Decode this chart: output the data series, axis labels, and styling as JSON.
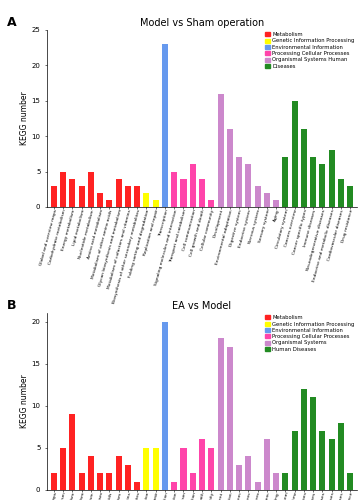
{
  "panel_A": {
    "title": "Model vs Sham operation",
    "label": "A",
    "ylabel": "KEGG number",
    "ylim": [
      0,
      25
    ],
    "yticks": [
      0,
      5,
      10,
      15,
      20,
      25
    ],
    "categories": [
      "Global and overview maps",
      "Carbohydrate metabolism",
      "Energy metabolism",
      "Lipid metabolism",
      "Nucleotide metabolism",
      "Amino acid metabolism",
      "Metabolism of other amino acids",
      "Glycan biosynthesis and metabolism",
      "Metabolism of cofactors and vitamins",
      "Biosynthesis of other secondary metabolites",
      "Folding sorting and degradation",
      "Replication and repair",
      "Transcription",
      "Signaling molecules and interaction",
      "Transport and catabolism",
      "Cell communication",
      "Cell growth and death",
      "Cellular community",
      "Development",
      "Environmental adaptation",
      "Digestive system",
      "Endocrine system",
      "Nervous system",
      "Sensory system",
      "Aging",
      "Circulatory system",
      "Cancers overview",
      "Cancer specific types",
      "Immune diseases",
      "Neurodegenerative diseases",
      "Endocrine and metabolic diseases",
      "Cardiovascular diseases",
      "Drug resistance"
    ],
    "values": [
      3,
      5,
      4,
      3,
      5,
      2,
      1,
      4,
      3,
      3,
      2,
      1,
      23,
      5,
      4,
      6,
      4,
      1,
      16,
      11,
      7,
      6,
      3,
      2,
      1,
      7,
      15,
      11,
      7,
      6,
      8,
      4,
      3
    ],
    "colors": [
      "#FF2222",
      "#FF2222",
      "#FF2222",
      "#FF2222",
      "#FF2222",
      "#FF2222",
      "#FF2222",
      "#FF2222",
      "#FF2222",
      "#FF2222",
      "#FFFF00",
      "#FFFF00",
      "#6699EE",
      "#FF44AA",
      "#FF44AA",
      "#FF44AA",
      "#FF44AA",
      "#FF44AA",
      "#CC88CC",
      "#CC88CC",
      "#CC88CC",
      "#CC88CC",
      "#CC88CC",
      "#CC88CC",
      "#CC88CC",
      "#228B22",
      "#228B22",
      "#228B22",
      "#228B22",
      "#228B22",
      "#228B22",
      "#228B22",
      "#228B22"
    ],
    "legend_labels": [
      "Metabolism",
      "Genetic Information Processing",
      "Environmental Information",
      "Processing Cellular Processes",
      "Organismal Systems Human",
      "Diseases"
    ],
    "legend_colors": [
      "#FF2222",
      "#FFFF00",
      "#6699EE",
      "#FF44AA",
      "#CC88CC",
      "#228B22"
    ]
  },
  "panel_B": {
    "title": "EA vs Model",
    "label": "B",
    "ylabel": "KEGG number",
    "ylim": [
      0,
      21
    ],
    "yticks": [
      0,
      5,
      10,
      15,
      20
    ],
    "categories": [
      "Global and overview maps",
      "Carbohydrate metabolism",
      "Energy metabolism",
      "Lipid metabolism",
      "Nucleotide metabolism",
      "Amino acid metabolism",
      "Metabolism of other amino acids",
      "Glycan biosynthesis and metabolism",
      "Metabolism of cofactors and vitamins",
      "Biosynthesis of other secondary metabolites",
      "Folding sorting and degradation",
      "Replication and repair",
      "Transcription",
      "Signaling molecules and interaction",
      "Transport and catabolism",
      "Cell communication",
      "Cell growth and death",
      "Cellular community",
      "Development",
      "Environmental adaptation",
      "Digestive system",
      "Endocrine system",
      "Nervous system",
      "Sensory system",
      "Aging",
      "Circulatory system",
      "Cancers overview",
      "Cancer specific types",
      "Immune diseases",
      "Neurodegenerative diseases",
      "Endocrine and metabolic diseases",
      "Cardiovascular diseases",
      "Drug resistance"
    ],
    "values": [
      2,
      5,
      9,
      2,
      4,
      2,
      2,
      4,
      3,
      1,
      5,
      5,
      20,
      1,
      5,
      2,
      6,
      5,
      18,
      17,
      3,
      4,
      1,
      6,
      2,
      2,
      7,
      12,
      11,
      7,
      6,
      8,
      2
    ],
    "colors": [
      "#FF2222",
      "#FF2222",
      "#FF2222",
      "#FF2222",
      "#FF2222",
      "#FF2222",
      "#FF2222",
      "#FF2222",
      "#FF2222",
      "#FF2222",
      "#FFFF00",
      "#FFFF00",
      "#6699EE",
      "#FF44AA",
      "#FF44AA",
      "#FF44AA",
      "#FF44AA",
      "#FF44AA",
      "#CC88CC",
      "#CC88CC",
      "#CC88CC",
      "#CC88CC",
      "#CC88CC",
      "#CC88CC",
      "#CC88CC",
      "#228B22",
      "#228B22",
      "#228B22",
      "#228B22",
      "#228B22",
      "#228B22",
      "#228B22",
      "#228B22"
    ],
    "legend_labels": [
      "Metabolism",
      "Genetic Information Processing",
      "Environmental Information",
      "Processing Cellular Processes",
      "Organismal Systems",
      "Human Diseases"
    ],
    "legend_colors": [
      "#FF2222",
      "#FFFF00",
      "#6699EE",
      "#FF44AA",
      "#CC88CC",
      "#228B22"
    ]
  },
  "fig_bg": "#FFFFFF"
}
